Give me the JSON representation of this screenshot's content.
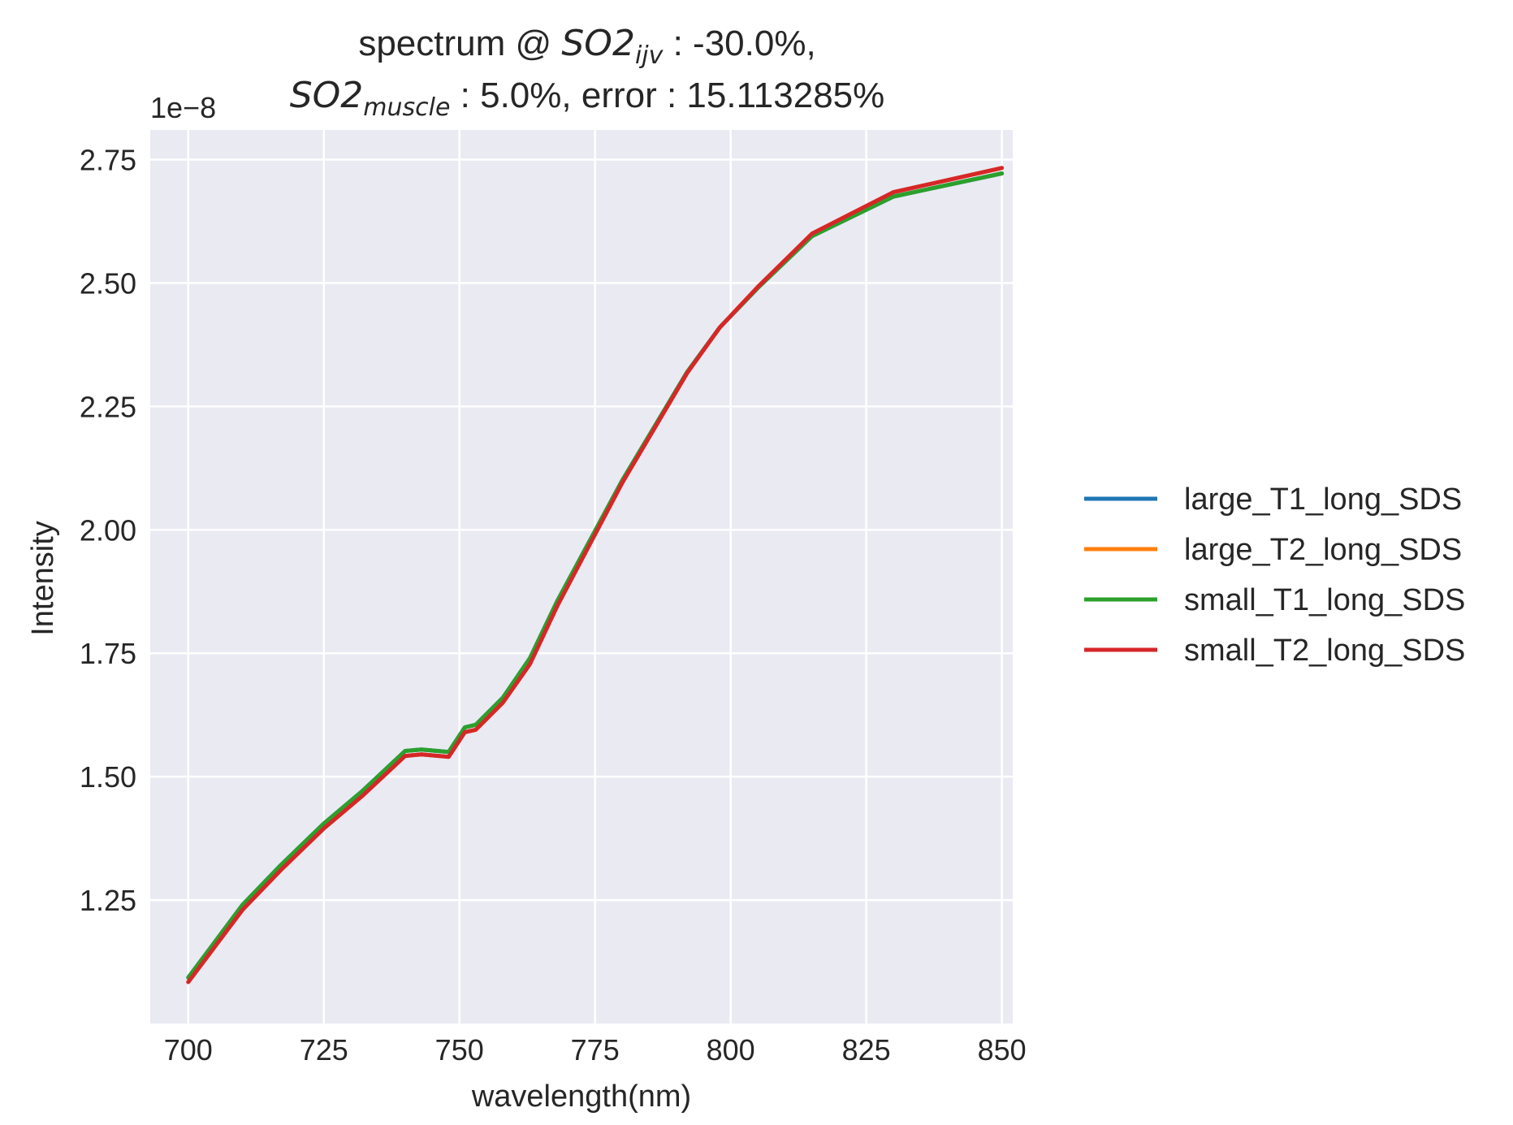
{
  "chart_data": {
    "type": "line",
    "title": {
      "line1_prefix": "spectrum @ ",
      "line1_sym": "SO2",
      "line1_sub": "ijv",
      "line1_suffix": " : -30.0%,",
      "line2_sym": "SO2",
      "line2_sub": "muscle",
      "line2_suffix": " : 5.0%, error : 15.113285%"
    },
    "xlabel": "wavelength(nm)",
    "ylabel": "Intensity",
    "y_offset_label": "1e−8",
    "xlim": [
      693,
      852
    ],
    "ylim": [
      1.0,
      2.81
    ],
    "x_ticks": [
      700,
      725,
      750,
      775,
      800,
      825,
      850
    ],
    "y_ticks": [
      1.25,
      1.5,
      1.75,
      2.0,
      2.25,
      2.5,
      2.75
    ],
    "y_tick_labels": [
      "1.25",
      "1.50",
      "1.75",
      "2.00",
      "2.25",
      "2.50",
      "2.75"
    ],
    "grid": true,
    "legend_position": "right",
    "background": "#eaeaf2",
    "x": [
      700,
      710,
      717,
      725,
      732,
      740,
      743,
      748,
      751,
      753,
      758,
      763,
      768,
      780,
      792,
      798,
      805,
      815,
      830,
      850
    ],
    "series": [
      {
        "name": "large_T1_long_SDS",
        "color": "#1f77b4",
        "values": [
          1.093,
          1.24,
          1.32,
          1.405,
          1.47,
          1.552,
          1.555,
          1.55,
          1.6,
          1.605,
          1.66,
          1.74,
          1.855,
          2.1,
          2.32,
          2.41,
          2.49,
          2.595,
          2.675,
          2.722
        ]
      },
      {
        "name": "large_T2_long_SDS",
        "color": "#ff7f0e",
        "values": [
          1.084,
          1.23,
          1.31,
          1.395,
          1.46,
          1.542,
          1.545,
          1.54,
          1.59,
          1.595,
          1.65,
          1.728,
          1.845,
          2.095,
          2.318,
          2.41,
          2.492,
          2.6,
          2.684,
          2.733
        ]
      },
      {
        "name": "small_T1_long_SDS",
        "color": "#2ca02c",
        "values": [
          1.093,
          1.24,
          1.32,
          1.405,
          1.47,
          1.552,
          1.555,
          1.55,
          1.6,
          1.605,
          1.66,
          1.74,
          1.855,
          2.1,
          2.32,
          2.41,
          2.49,
          2.595,
          2.675,
          2.722
        ]
      },
      {
        "name": "small_T2_long_SDS",
        "color": "#d62728",
        "values": [
          1.084,
          1.23,
          1.31,
          1.395,
          1.46,
          1.542,
          1.545,
          1.54,
          1.59,
          1.595,
          1.65,
          1.728,
          1.845,
          2.095,
          2.318,
          2.41,
          2.492,
          2.6,
          2.684,
          2.733
        ]
      }
    ]
  }
}
